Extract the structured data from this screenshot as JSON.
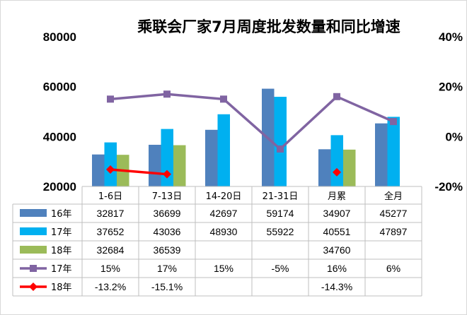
{
  "chart_data": {
    "type": "bar",
    "title": "乘联会厂家7月周度批发数量和同比增速",
    "categories": [
      "1-6日",
      "7-13日",
      "14-20日",
      "21-31日",
      "月累",
      "全月"
    ],
    "ylim": [
      20000,
      80000
    ],
    "yticks": [
      "80000",
      "60000",
      "40000",
      "20000"
    ],
    "y2lim": [
      -20,
      40
    ],
    "y2ticks": [
      "40%",
      "20%",
      "0%",
      "-20%"
    ],
    "grid": false,
    "legend": "data-table",
    "bar_series": [
      {
        "name": "16年",
        "color": "#4f81bd",
        "values": [
          32817,
          36699,
          42697,
          59174,
          34907,
          45277
        ],
        "labels": [
          "32817",
          "36699",
          "42697",
          "59174",
          "34907",
          "45277"
        ]
      },
      {
        "name": "17年",
        "color": "#00b0f0",
        "values": [
          37652,
          43036,
          48930,
          55922,
          40551,
          47897
        ],
        "labels": [
          "37652",
          "43036",
          "48930",
          "55922",
          "40551",
          "47897"
        ]
      },
      {
        "name": "18年",
        "color": "#9bbb59",
        "values": [
          32684,
          36539,
          null,
          null,
          34760,
          null
        ],
        "labels": [
          "32684",
          "36539",
          "",
          "",
          "34760",
          ""
        ]
      }
    ],
    "line_series": [
      {
        "name": "17年",
        "color": "#8064a2",
        "marker": "square",
        "values": [
          15,
          17,
          15,
          -5,
          16,
          6
        ],
        "labels": [
          "15%",
          "17%",
          "15%",
          "-5%",
          "16%",
          "6%"
        ]
      },
      {
        "name": "18年",
        "color": "#ff0000",
        "marker": "diamond",
        "values": [
          -13.2,
          -15.1,
          null,
          null,
          -14.3,
          null
        ],
        "labels": [
          "-13.2%",
          "-15.1%",
          "",
          "",
          "-14.3%",
          ""
        ]
      }
    ]
  }
}
